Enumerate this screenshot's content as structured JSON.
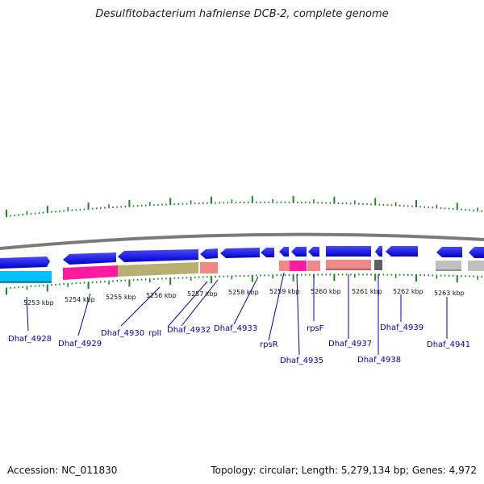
{
  "title": "Desulfitobacterium hafniense DCB-2, complete genome",
  "footer": {
    "accession": "Accession: NC_011830",
    "topology": "Topology: circular; Length: 5,279,134 bp; Genes: 4,972"
  },
  "ruler_labels": [
    "5253 kbp",
    "5254 kbp",
    "5255 kbp",
    "5256 kbp",
    "5257 kbp",
    "5258 kbp",
    "5259 kbp",
    "5260 kbp",
    "5261 kbp",
    "5262 kbp",
    "5263 kbp"
  ],
  "gene_labels": [
    "Dhaf_4928",
    "Dhaf_4929",
    "Dhaf_4930",
    "rplI",
    "Dhaf_4932",
    "Dhaf_4933",
    "rpsR",
    "Dhaf_4935",
    "rpsF",
    "Dhaf_4937",
    "Dhaf_4938",
    "Dhaf_4939",
    "Dhaf_4941"
  ],
  "colors": {
    "forward_gene": "#0000ee",
    "cyan_gene": "#00c0ff",
    "magenta_gene": "#ff1aa0",
    "olive_gene": "#b8b070",
    "salmon_gene": "#f08888",
    "dark_gene": "#606060",
    "gray_gene": "#c0c0c0",
    "tick_green": "#1a8a1a",
    "backbone": "#7a7a7a",
    "label_blue": "#0000b0"
  }
}
